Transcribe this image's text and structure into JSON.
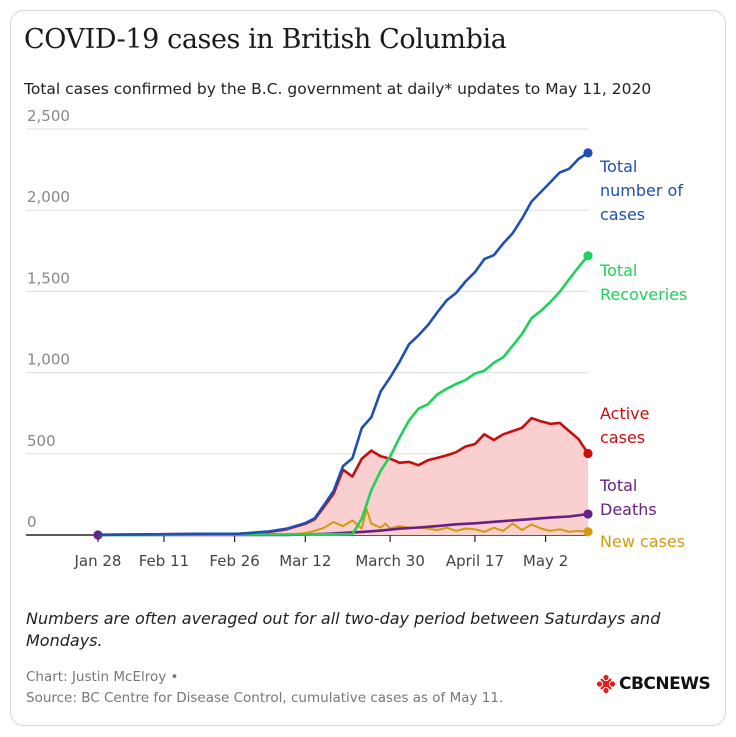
{
  "title": "COVID-19 cases in British Columbia",
  "subtitle": "Total cases confirmed by the B.C. government at daily* updates to May 11, 2020",
  "note": "Numbers are often averaged out for all two-day period between Saturdays and Mondays.",
  "credit_line1": "Chart: Justin McElroy •",
  "credit_line2": "Source: BC Centre for Disease Control, cumulative cases as of May 11.",
  "logo_text": "CBCNEWS",
  "chart_data": {
    "type": "line",
    "ylim": [
      0,
      2500
    ],
    "y_ticks": [
      0,
      500,
      1000,
      1500,
      2000,
      2500
    ],
    "y_tick_labels": [
      "0",
      "500",
      "1,000",
      "1,500",
      "2,000",
      "2,500"
    ],
    "x_tick_labels": [
      "Jan 28",
      "Feb 11",
      "Feb 26",
      "Mar 12",
      "March 30",
      "April 17",
      "May 2"
    ],
    "x_tick_days": [
      0,
      14,
      29,
      44,
      62,
      80,
      95
    ],
    "x_range_days": [
      0,
      104
    ],
    "series": [
      {
        "name": "Total number of cases",
        "label_lines": [
          "Total",
          "number of",
          "cases"
        ],
        "color": "#1f4fb4",
        "points": [
          [
            0,
            1
          ],
          [
            10,
            4
          ],
          [
            20,
            7
          ],
          [
            30,
            8
          ],
          [
            36,
            21
          ],
          [
            40,
            39
          ],
          [
            44,
            73
          ],
          [
            46,
            103
          ],
          [
            48,
            186
          ],
          [
            50,
            271
          ],
          [
            52,
            424
          ],
          [
            54,
            472
          ],
          [
            56,
            659
          ],
          [
            58,
            725
          ],
          [
            60,
            884
          ],
          [
            62,
            970
          ],
          [
            64,
            1066
          ],
          [
            66,
            1174
          ],
          [
            68,
            1229
          ],
          [
            70,
            1291
          ],
          [
            72,
            1370
          ],
          [
            74,
            1445
          ],
          [
            76,
            1490
          ],
          [
            78,
            1561
          ],
          [
            80,
            1618
          ],
          [
            82,
            1699
          ],
          [
            84,
            1723
          ],
          [
            86,
            1795
          ],
          [
            88,
            1858
          ],
          [
            90,
            1948
          ],
          [
            92,
            2053
          ],
          [
            94,
            2112
          ],
          [
            96,
            2171
          ],
          [
            98,
            2232
          ],
          [
            100,
            2255
          ],
          [
            102,
            2316
          ],
          [
            104,
            2353
          ]
        ]
      },
      {
        "name": "Total Recoveries",
        "label_lines": [
          "Total",
          "Recoveries"
        ],
        "color": "#1ed15a",
        "points": [
          [
            0,
            0
          ],
          [
            44,
            4
          ],
          [
            50,
            5
          ],
          [
            54,
            6
          ],
          [
            56,
            100
          ],
          [
            58,
            275
          ],
          [
            60,
            396
          ],
          [
            62,
            482
          ],
          [
            64,
            600
          ],
          [
            66,
            705
          ],
          [
            68,
            778
          ],
          [
            70,
            805
          ],
          [
            72,
            865
          ],
          [
            74,
            900
          ],
          [
            76,
            930
          ],
          [
            78,
            954
          ],
          [
            80,
            994
          ],
          [
            82,
            1012
          ],
          [
            84,
            1061
          ],
          [
            86,
            1094
          ],
          [
            88,
            1165
          ],
          [
            90,
            1237
          ],
          [
            92,
            1335
          ],
          [
            94,
            1380
          ],
          [
            96,
            1435
          ],
          [
            98,
            1497
          ],
          [
            100,
            1576
          ],
          [
            102,
            1650
          ],
          [
            104,
            1719
          ]
        ]
      },
      {
        "name": "Active cases",
        "label_lines": [
          "Active",
          "cases"
        ],
        "color": "#c80d0d",
        "fill": "#f9cfcf",
        "points": [
          [
            0,
            1
          ],
          [
            10,
            4
          ],
          [
            20,
            7
          ],
          [
            30,
            8
          ],
          [
            36,
            17
          ],
          [
            40,
            35
          ],
          [
            44,
            69
          ],
          [
            46,
            97
          ],
          [
            48,
            175
          ],
          [
            50,
            255
          ],
          [
            52,
            402
          ],
          [
            54,
            360
          ],
          [
            56,
            470
          ],
          [
            58,
            520
          ],
          [
            60,
            485
          ],
          [
            62,
            470
          ],
          [
            64,
            445
          ],
          [
            66,
            450
          ],
          [
            68,
            430
          ],
          [
            70,
            460
          ],
          [
            72,
            475
          ],
          [
            74,
            490
          ],
          [
            76,
            510
          ],
          [
            78,
            545
          ],
          [
            80,
            560
          ],
          [
            82,
            620
          ],
          [
            84,
            585
          ],
          [
            86,
            620
          ],
          [
            88,
            640
          ],
          [
            90,
            660
          ],
          [
            92,
            720
          ],
          [
            94,
            700
          ],
          [
            96,
            685
          ],
          [
            98,
            690
          ],
          [
            100,
            640
          ],
          [
            102,
            590
          ],
          [
            104,
            502
          ]
        ]
      },
      {
        "name": "Total Deaths",
        "label_lines": [
          "Total",
          "Deaths"
        ],
        "color": "#6a1f85",
        "points": [
          [
            0,
            0
          ],
          [
            40,
            0
          ],
          [
            44,
            4
          ],
          [
            48,
            7
          ],
          [
            52,
            13
          ],
          [
            56,
            19
          ],
          [
            60,
            27
          ],
          [
            64,
            39
          ],
          [
            68,
            46
          ],
          [
            72,
            55
          ],
          [
            76,
            66
          ],
          [
            80,
            72
          ],
          [
            84,
            81
          ],
          [
            88,
            90
          ],
          [
            92,
            98
          ],
          [
            96,
            107
          ],
          [
            100,
            114
          ],
          [
            104,
            129
          ]
        ]
      },
      {
        "name": "New cases",
        "label_lines": [
          "New cases"
        ],
        "color": "#d49a0e",
        "points": [
          [
            0,
            1
          ],
          [
            40,
            2
          ],
          [
            44,
            12
          ],
          [
            46,
            26
          ],
          [
            48,
            45
          ],
          [
            50,
            80
          ],
          [
            52,
            55
          ],
          [
            54,
            90
          ],
          [
            56,
            40
          ],
          [
            57,
            160
          ],
          [
            58,
            70
          ],
          [
            60,
            45
          ],
          [
            61,
            70
          ],
          [
            62,
            40
          ],
          [
            64,
            55
          ],
          [
            66,
            45
          ],
          [
            68,
            45
          ],
          [
            70,
            40
          ],
          [
            72,
            30
          ],
          [
            74,
            45
          ],
          [
            76,
            25
          ],
          [
            78,
            40
          ],
          [
            80,
            35
          ],
          [
            82,
            20
          ],
          [
            84,
            45
          ],
          [
            86,
            25
          ],
          [
            88,
            70
          ],
          [
            90,
            30
          ],
          [
            92,
            65
          ],
          [
            94,
            40
          ],
          [
            96,
            25
          ],
          [
            98,
            35
          ],
          [
            100,
            20
          ],
          [
            102,
            25
          ],
          [
            104,
            20
          ]
        ]
      }
    ]
  }
}
